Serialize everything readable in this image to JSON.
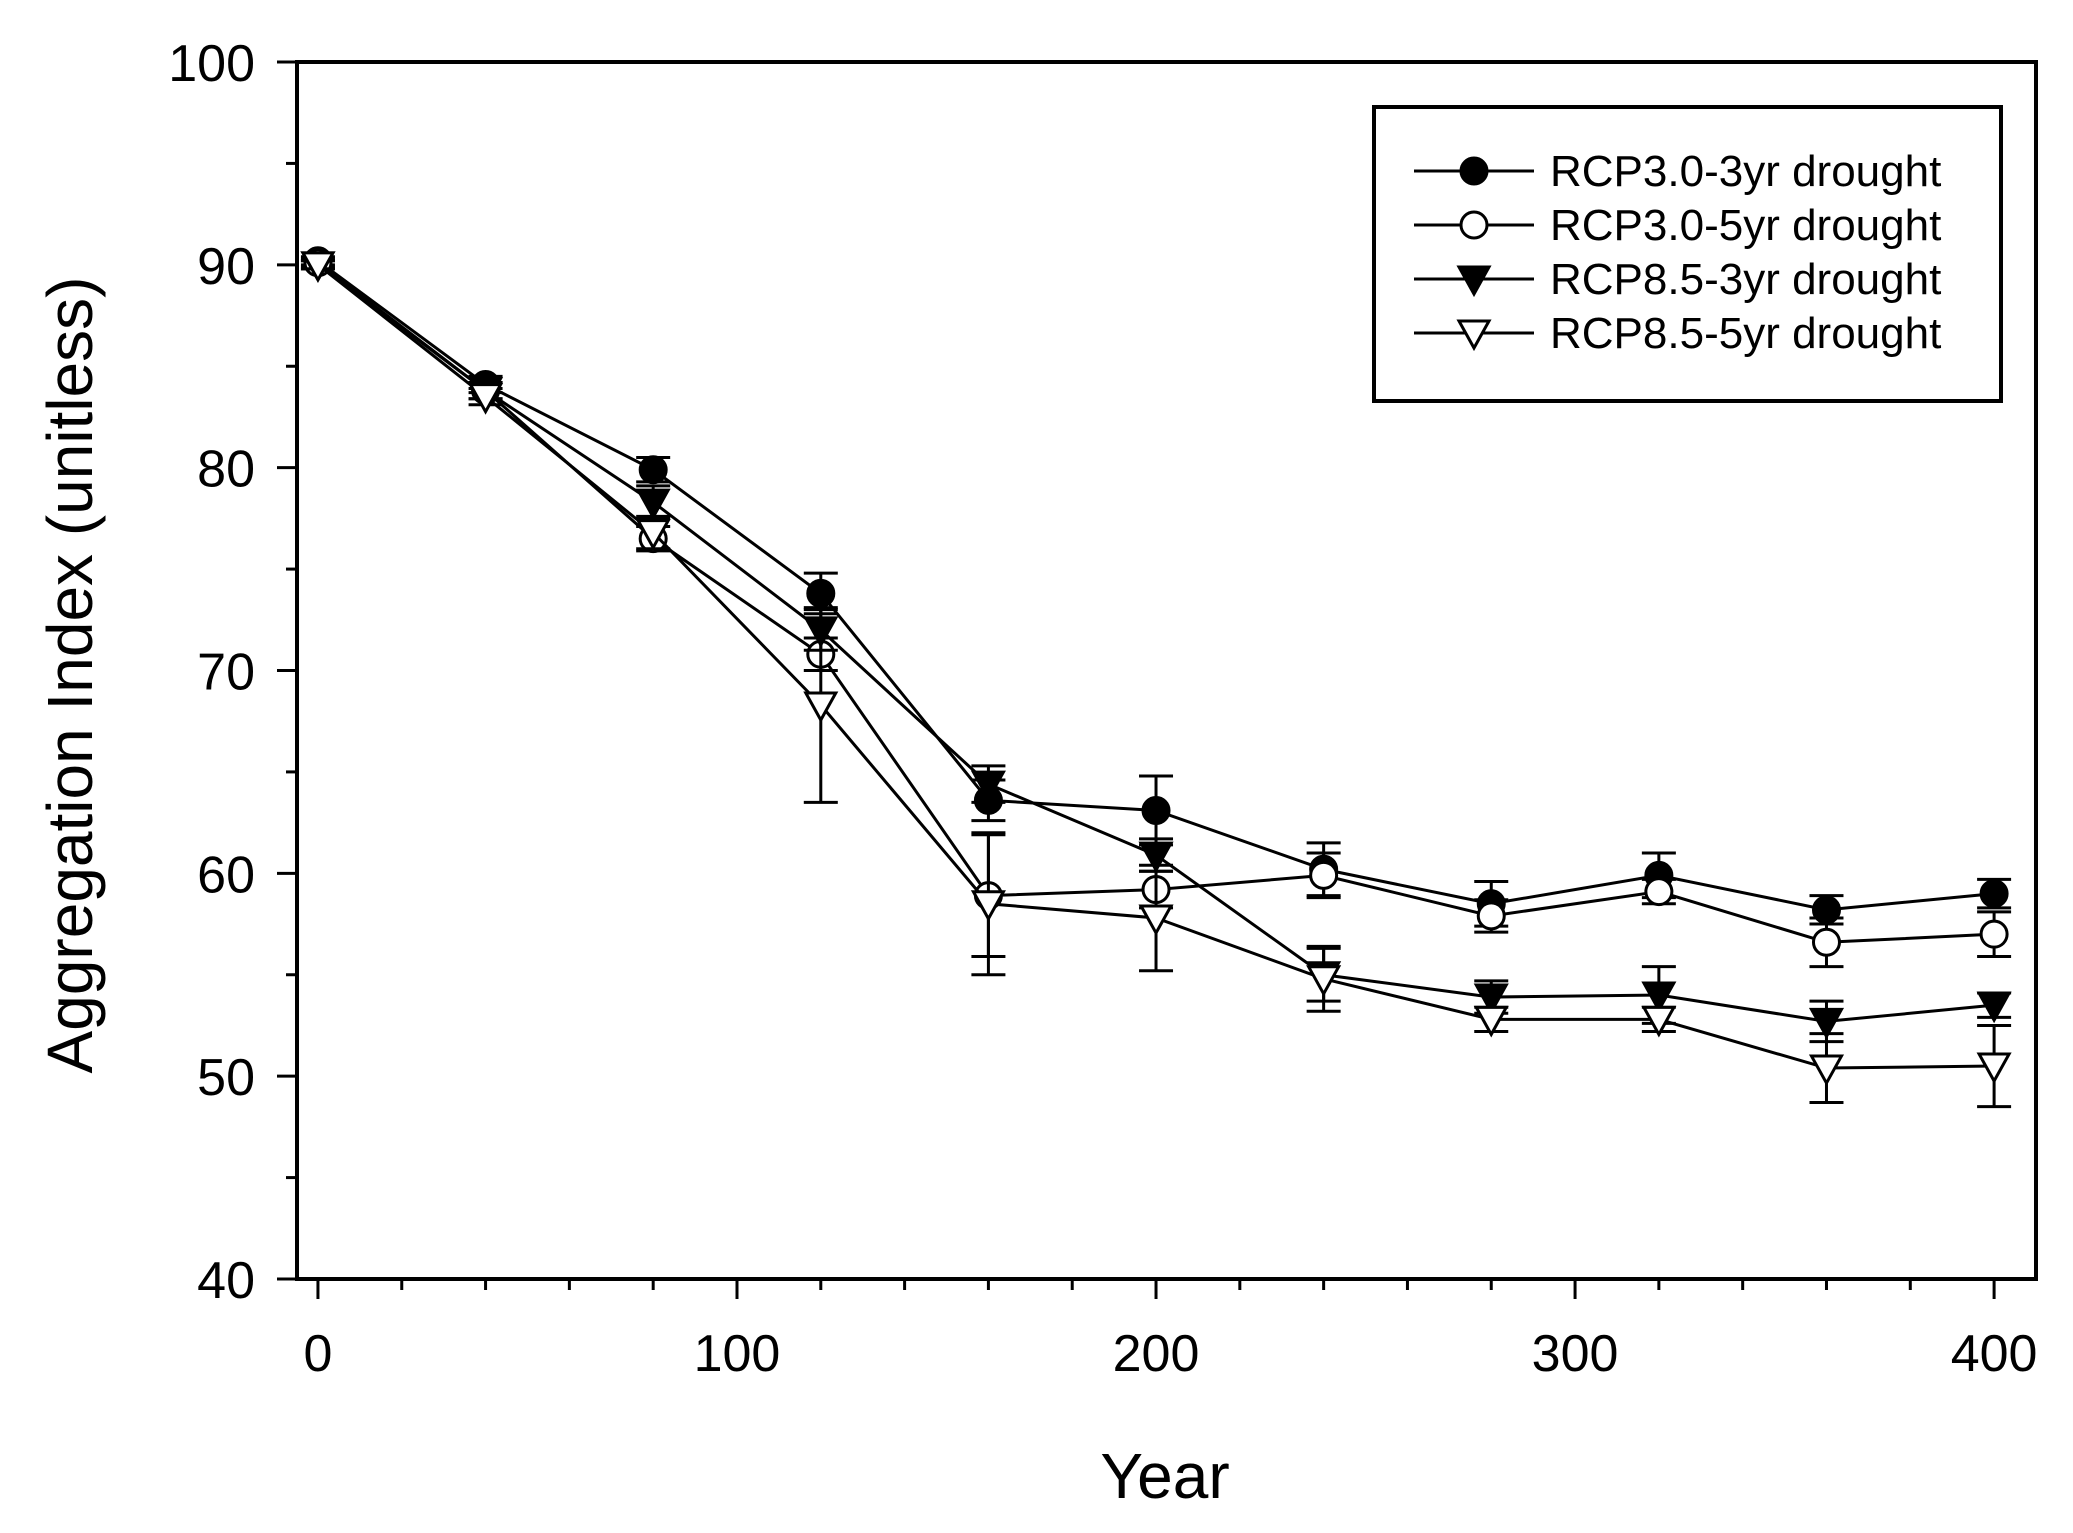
{
  "chart_data": {
    "type": "line",
    "title": "",
    "xlabel": "Year",
    "ylabel": "Aggregation Index (unitless)",
    "xlim": [
      -5,
      410
    ],
    "ylim": [
      40,
      100
    ],
    "xticks": [
      0,
      100,
      200,
      300,
      400
    ],
    "yticks": [
      40,
      50,
      60,
      70,
      80,
      90,
      100
    ],
    "x_minor_step": 20,
    "y_minor_step": 5,
    "grid": false,
    "legend_position": "top-right",
    "x": [
      0,
      40,
      80,
      120,
      160,
      200,
      240,
      280,
      320,
      360,
      400
    ],
    "series": [
      {
        "name": "RCP3.0-3yr drought",
        "marker": "circle",
        "fill": "filled",
        "values": [
          90.2,
          84.1,
          79.9,
          73.8,
          63.6,
          63.1,
          60.2,
          58.5,
          59.9,
          58.2,
          59.0
        ],
        "errors": [
          0.2,
          0.4,
          0.6,
          1.0,
          1.0,
          1.7,
          1.3,
          1.1,
          1.1,
          0.7,
          0.7
        ]
      },
      {
        "name": "RCP3.0-5yr drought",
        "marker": "circle",
        "fill": "open",
        "values": [
          90.1,
          83.8,
          76.5,
          70.8,
          58.9,
          59.2,
          59.9,
          57.9,
          59.1,
          56.6,
          57.0
        ],
        "errors": [
          0.2,
          0.4,
          0.6,
          0.8,
          3.0,
          0.9,
          1.1,
          0.8,
          0.6,
          1.2,
          1.1
        ]
      },
      {
        "name": "RCP8.5-3yr drought",
        "marker": "triangle-down",
        "fill": "filled",
        "values": [
          90.0,
          83.8,
          78.3,
          72.0,
          64.4,
          60.9,
          55.0,
          53.9,
          54.0,
          52.7,
          53.5
        ],
        "errors": [
          0.2,
          0.4,
          0.8,
          1.0,
          0.9,
          0.8,
          1.3,
          0.8,
          1.4,
          1.0,
          0.6
        ]
      },
      {
        "name": "RCP8.5-5yr drought",
        "marker": "triangle-down",
        "fill": "open",
        "values": [
          90.0,
          83.5,
          76.8,
          68.3,
          58.5,
          57.8,
          54.8,
          52.8,
          52.8,
          50.4,
          50.5
        ],
        "errors": [
          0.2,
          0.4,
          0.8,
          4.8,
          3.5,
          2.6,
          1.6,
          0.6,
          0.6,
          1.7,
          2.0
        ]
      }
    ]
  }
}
